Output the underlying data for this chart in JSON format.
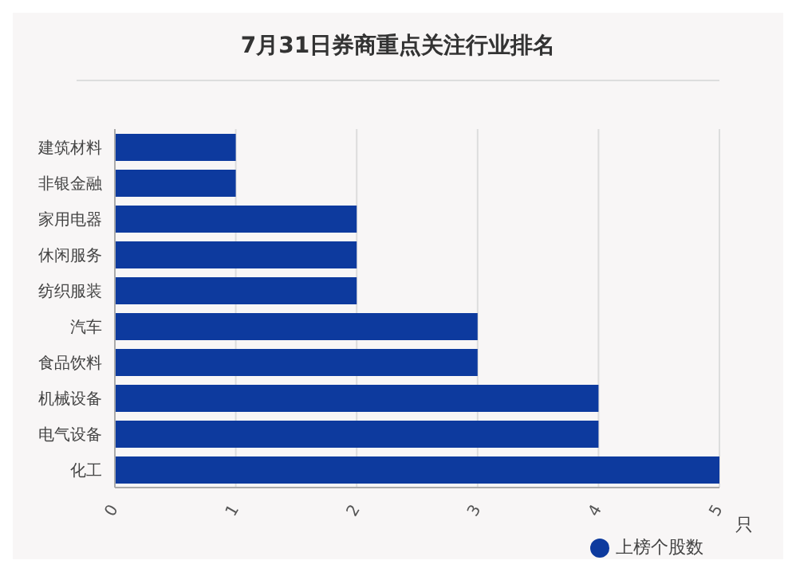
{
  "chart_data": {
    "type": "bar",
    "orientation": "horizontal",
    "title": "7月31日券商重点关注行业排名",
    "xlabel": "只",
    "categories": [
      "建筑材料",
      "非银金融",
      "家用电器",
      "休闲服务",
      "纺织服装",
      "汽车",
      "食品饮料",
      "机械设备",
      "电气设备",
      "化工"
    ],
    "series": [
      {
        "name": "上榜个股数",
        "color": "#0d3a9e",
        "values": [
          1,
          1,
          2,
          2,
          2,
          3,
          3,
          4,
          4,
          5
        ]
      }
    ],
    "xlim": [
      0,
      5
    ],
    "xticks": [
      0,
      1,
      2,
      3,
      4,
      5
    ],
    "grid": "x",
    "legend": "bottom right"
  }
}
